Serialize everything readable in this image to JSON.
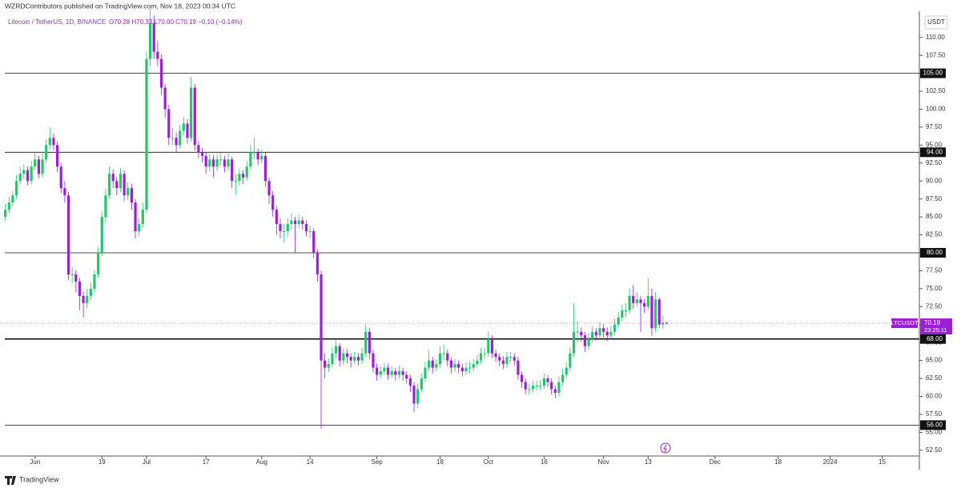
{
  "header": {
    "published": "WZRDContributors published on TradingView.com, Nov 18, 2023 00:34 UTC"
  },
  "footer": {
    "brand": "TradingView"
  },
  "chart_data": {
    "type": "candlestick",
    "title": "Litecoin / TetherUS, 1D, BINANCE",
    "ohlc_legend": "O70.28 H70.33 L70.00 C70.19 −0.10 (−0.14%)",
    "currency": "USDT",
    "symbol": "LTCUSDT",
    "countdown": "23:25:11",
    "up_color": "#22c76a",
    "down_color": "#9b1fd6",
    "last_price_line": true,
    "x": [
      "2023-05-24",
      "2023-05-25",
      "2023-05-26",
      "2023-05-27",
      "2023-05-28",
      "2023-05-29",
      "2023-05-30",
      "2023-05-31",
      "2023-06-01",
      "2023-06-02",
      "2023-06-03",
      "2023-06-04",
      "2023-06-05",
      "2023-06-06",
      "2023-06-07",
      "2023-06-08",
      "2023-06-09",
      "2023-06-10",
      "2023-06-11",
      "2023-06-12",
      "2023-06-13",
      "2023-06-14",
      "2023-06-15",
      "2023-06-16",
      "2023-06-17",
      "2023-06-18",
      "2023-06-19",
      "2023-06-20",
      "2023-06-21",
      "2023-06-22",
      "2023-06-23",
      "2023-06-24",
      "2023-06-25",
      "2023-06-26",
      "2023-06-27",
      "2023-06-28",
      "2023-06-29",
      "2023-06-30",
      "2023-07-01",
      "2023-07-02",
      "2023-07-03",
      "2023-07-04",
      "2023-07-05",
      "2023-07-06",
      "2023-07-07",
      "2023-07-08",
      "2023-07-09",
      "2023-07-10",
      "2023-07-11",
      "2023-07-12",
      "2023-07-13",
      "2023-07-14",
      "2023-07-15",
      "2023-07-16",
      "2023-07-17",
      "2023-07-18",
      "2023-07-19",
      "2023-07-20",
      "2023-07-21",
      "2023-07-22",
      "2023-07-23",
      "2023-07-24",
      "2023-07-25",
      "2023-07-26",
      "2023-07-27",
      "2023-07-28",
      "2023-07-29",
      "2023-07-30",
      "2023-07-31",
      "2023-08-01",
      "2023-08-02",
      "2023-08-03",
      "2023-08-04",
      "2023-08-05",
      "2023-08-06",
      "2023-08-07",
      "2023-08-08",
      "2023-08-09",
      "2023-08-10",
      "2023-08-11",
      "2023-08-12",
      "2023-08-13",
      "2023-08-14",
      "2023-08-15",
      "2023-08-16",
      "2023-08-17",
      "2023-08-18",
      "2023-08-19",
      "2023-08-20",
      "2023-08-21",
      "2023-08-22",
      "2023-08-23",
      "2023-08-24",
      "2023-08-25",
      "2023-08-26",
      "2023-08-27",
      "2023-08-28",
      "2023-08-29",
      "2023-08-30",
      "2023-08-31",
      "2023-09-01",
      "2023-09-02",
      "2023-09-03",
      "2023-09-04",
      "2023-09-05",
      "2023-09-06",
      "2023-09-07",
      "2023-09-08",
      "2023-09-09",
      "2023-09-10",
      "2023-09-11",
      "2023-09-12",
      "2023-09-13",
      "2023-09-14",
      "2023-09-15",
      "2023-09-16",
      "2023-09-17",
      "2023-09-18",
      "2023-09-19",
      "2023-09-20",
      "2023-09-21",
      "2023-09-22",
      "2023-09-23",
      "2023-09-24",
      "2023-09-25",
      "2023-09-26",
      "2023-09-27",
      "2023-09-28",
      "2023-09-29",
      "2023-09-30",
      "2023-10-01",
      "2023-10-02",
      "2023-10-03",
      "2023-10-04",
      "2023-10-05",
      "2023-10-06",
      "2023-10-07",
      "2023-10-08",
      "2023-10-09",
      "2023-10-10",
      "2023-10-11",
      "2023-10-12",
      "2023-10-13",
      "2023-10-14",
      "2023-10-15",
      "2023-10-16",
      "2023-10-17",
      "2023-10-18",
      "2023-10-19",
      "2023-10-20",
      "2023-10-21",
      "2023-10-22",
      "2023-10-23",
      "2023-10-24",
      "2023-10-25",
      "2023-10-26",
      "2023-10-27",
      "2023-10-28",
      "2023-10-29",
      "2023-10-30",
      "2023-10-31",
      "2023-11-01",
      "2023-11-02",
      "2023-11-03",
      "2023-11-04",
      "2023-11-05",
      "2023-11-06",
      "2023-11-07",
      "2023-11-08",
      "2023-11-09",
      "2023-11-10",
      "2023-11-11",
      "2023-11-12",
      "2023-11-13",
      "2023-11-14",
      "2023-11-15",
      "2023-11-16",
      "2023-11-17",
      "2023-11-18"
    ],
    "open": [
      85,
      86,
      87,
      88,
      90,
      91,
      91.5,
      90,
      92,
      93,
      91,
      93,
      95,
      96,
      95,
      92,
      89,
      88,
      77,
      77,
      76,
      74,
      73,
      74,
      75,
      77,
      80,
      85,
      88,
      91,
      90,
      89,
      91,
      88,
      89,
      87,
      83,
      84,
      86,
      107,
      112,
      108,
      107,
      103,
      100,
      96,
      96,
      95,
      97,
      98,
      96,
      103,
      95,
      94,
      93.5,
      92,
      93,
      92,
      93,
      93,
      92,
      93,
      90,
      90,
      91,
      90.5,
      92,
      94,
      94,
      93,
      93.5,
      90,
      88,
      86,
      84,
      83,
      83,
      84,
      84.5,
      84,
      84.5,
      84,
      83,
      83,
      80,
      77,
      65,
      64,
      64.5,
      66,
      67,
      65,
      66,
      65.5,
      65,
      65.5,
      65,
      66,
      69,
      66,
      64,
      63,
      63.5,
      64,
      63,
      63.5,
      63,
      63.5,
      63,
      62.5,
      61.5,
      59,
      61,
      62.5,
      64,
      65,
      64,
      64.5,
      66,
      66,
      65,
      64,
      64.5,
      64,
      63.5,
      64,
      64,
      64.5,
      65,
      66,
      66,
      68,
      66,
      65.5,
      65,
      64.5,
      65.5,
      65.5,
      65,
      63,
      62,
      61,
      61,
      61.5,
      61.5,
      61.5,
      62.5,
      62,
      61,
      60.5,
      62,
      63,
      64,
      66,
      69,
      69,
      68.5,
      67,
      68,
      69,
      68.5,
      69.5,
      69,
      68.5,
      69,
      70,
      71,
      72,
      72,
      74,
      73,
      73.5,
      73,
      72.5,
      74,
      69.5,
      73.5,
      70,
      70.28
    ],
    "high": [
      86.8,
      87.8,
      88.6,
      90.8,
      92,
      92.3,
      92,
      92.8,
      94,
      93.5,
      93.8,
      95.8,
      97.5,
      96.6,
      95.5,
      92.5,
      90,
      88.5,
      78,
      77.6,
      76.5,
      74.6,
      75,
      75.8,
      77.6,
      80.8,
      85.8,
      89,
      92,
      91.6,
      90.5,
      91.8,
      91.5,
      89.8,
      89.6,
      87.5,
      84.8,
      87,
      108,
      114,
      113,
      109.5,
      107.6,
      103.5,
      100.6,
      97.4,
      96.8,
      97.8,
      98.9,
      98.6,
      104.5,
      103.5,
      95.6,
      94.6,
      94,
      93.8,
      93.6,
      93.7,
      94,
      93.5,
      93.8,
      93.4,
      91,
      91.7,
      91.5,
      92.8,
      95,
      96,
      94.5,
      94.3,
      94,
      90.5,
      88.6,
      86.5,
      84.8,
      84,
      84.8,
      85.5,
      85,
      85.3,
      85,
      84.5,
      83.8,
      83.4,
      80.5,
      77.5,
      66,
      65.3,
      66.8,
      67.8,
      67.4,
      66.7,
      66.6,
      66,
      66.2,
      66,
      66.8,
      70,
      69.5,
      66.5,
      64.6,
      64.2,
      64.7,
      64.5,
      64.2,
      64,
      64.2,
      64,
      63.5,
      63,
      62,
      61.8,
      63.2,
      64.8,
      66.5,
      65.5,
      65.2,
      67,
      67.2,
      66.5,
      65.4,
      65.2,
      65,
      64.5,
      64.7,
      64.8,
      65.2,
      65.8,
      66.8,
      66.8,
      69,
      68.5,
      66.5,
      66,
      65.6,
      66.2,
      66.2,
      66,
      65.5,
      63.5,
      62.5,
      61.8,
      62.2,
      62.2,
      62.3,
      63.2,
      63,
      62.5,
      61.5,
      62.8,
      63.8,
      64.8,
      66.8,
      73,
      70.5,
      69.6,
      69,
      68.8,
      69.8,
      69.5,
      70.3,
      70,
      69.6,
      69.8,
      70.8,
      71.8,
      72.8,
      73,
      75,
      75.5,
      74.5,
      74,
      73.6,
      76.5,
      75,
      74.5,
      73.8,
      71.3,
      70.33
    ],
    "low": [
      84.5,
      85.5,
      86.5,
      87.5,
      89.5,
      90.2,
      89.4,
      89.5,
      91.5,
      90.4,
      90.5,
      92.5,
      94.5,
      94.3,
      91.2,
      88.3,
      87,
      76.2,
      75.8,
      74.5,
      72,
      71,
      72.3,
      73.4,
      74.5,
      76.5,
      79.5,
      84.2,
      87.5,
      89,
      88,
      88.4,
      87.2,
      87.4,
      86,
      82,
      82.4,
      83.5,
      85.5,
      106,
      107,
      106,
      102,
      98.8,
      95,
      95,
      94,
      94.5,
      96.4,
      95.2,
      95.5,
      94.2,
      93.2,
      92.6,
      91,
      91.3,
      90.5,
      91.4,
      92.2,
      91.2,
      91.5,
      89,
      88,
      89.4,
      89.6,
      90,
      91.5,
      93,
      92.2,
      92.5,
      89.2,
      86.8,
      85,
      82.5,
      82,
      81.5,
      82.2,
      83.3,
      80,
      83.4,
      83.2,
      82.3,
      82,
      79.2,
      76,
      55.5,
      62.5,
      63.4,
      64,
      65.3,
      64.2,
      64.4,
      64.6,
      64,
      64.5,
      64.3,
      64.5,
      65.5,
      65.2,
      63.3,
      62.2,
      62.5,
      63,
      62.3,
      62.6,
      62.2,
      62.5,
      62.2,
      61.8,
      60.6,
      57.8,
      58.4,
      60.5,
      62,
      63.5,
      63.2,
      63.5,
      64,
      65,
      64.2,
      63.2,
      63.5,
      63.2,
      62.8,
      63,
      63.2,
      63.5,
      64,
      64.5,
      65.2,
      65.5,
      65.4,
      64.8,
      64.2,
      63.8,
      64,
      64.8,
      64.3,
      62.3,
      61.2,
      60.3,
      60.2,
      60.5,
      60.8,
      60.8,
      61,
      61.3,
      60.3,
      59.8,
      60,
      61.5,
      62.5,
      63.5,
      65.5,
      67.5,
      67.6,
      66.2,
      66.5,
      67.5,
      67.8,
      68,
      68.2,
      67.7,
      68,
      68.5,
      69.5,
      70.5,
      71,
      71.5,
      72.2,
      72.5,
      69,
      71.6,
      72,
      68.5,
      69,
      69.5,
      69.4,
      70
    ],
    "close": [
      86,
      87,
      88,
      90,
      91,
      91.5,
      90,
      92,
      93,
      91,
      93,
      95,
      96,
      95,
      92,
      89,
      88,
      77,
      77,
      76,
      74,
      73,
      74,
      75,
      77,
      80,
      85,
      88,
      91,
      90,
      89,
      91,
      88,
      89,
      87,
      83,
      84,
      86,
      107,
      112,
      108,
      107,
      103,
      100,
      96,
      96,
      95,
      97,
      98,
      96,
      103,
      95,
      94,
      93.5,
      92,
      93,
      92,
      93,
      93,
      92,
      93,
      90,
      90,
      91,
      90.5,
      92,
      94,
      94,
      93,
      93.5,
      90,
      88,
      86,
      84,
      83,
      83,
      84,
      84.5,
      84,
      84.5,
      84,
      83,
      83,
      80,
      77,
      65,
      64,
      64.5,
      66,
      67,
      65,
      66,
      65.5,
      65,
      65.5,
      65,
      66,
      69,
      66,
      64,
      63,
      63.5,
      64,
      63,
      63.5,
      63,
      63.5,
      63,
      62.5,
      61.5,
      59,
      61,
      62.5,
      64,
      65,
      64,
      64.5,
      66,
      66,
      65,
      64,
      64.5,
      64,
      63.5,
      64,
      64,
      64.5,
      65,
      66,
      66,
      68,
      66,
      65.5,
      65,
      64.5,
      65.5,
      65.5,
      65,
      63,
      62,
      61,
      61,
      61.5,
      61.5,
      61.5,
      62.5,
      62,
      61,
      60.5,
      62,
      63,
      64,
      66,
      69,
      69,
      68.5,
      67,
      68,
      69,
      68.5,
      69.5,
      69,
      68.5,
      69,
      70,
      71,
      72,
      72,
      74,
      73,
      73.5,
      73,
      72.5,
      74,
      69.5,
      73.5,
      70,
      70.28,
      70.19
    ],
    "xlim": [
      "2023-05-23",
      "2024-01-25"
    ],
    "xticks": [
      {
        "value": "2023-06-01",
        "label": "Jun"
      },
      {
        "value": "2023-06-19",
        "label": "19"
      },
      {
        "value": "2023-07-01",
        "label": "Jul"
      },
      {
        "value": "2023-07-17",
        "label": "17"
      },
      {
        "value": "2023-08-01",
        "label": "Aug"
      },
      {
        "value": "2023-08-14",
        "label": "14"
      },
      {
        "value": "2023-09-01",
        "label": "Sep"
      },
      {
        "value": "2023-09-18",
        "label": "18"
      },
      {
        "value": "2023-10-01",
        "label": "Oct"
      },
      {
        "value": "2023-10-16",
        "label": "16"
      },
      {
        "value": "2023-11-01",
        "label": "Nov"
      },
      {
        "value": "2023-11-13",
        "label": "13"
      },
      {
        "value": "2023-12-01",
        "label": "Dec"
      },
      {
        "value": "2023-12-18",
        "label": "18"
      },
      {
        "value": "2024-01-01",
        "label": "2024"
      },
      {
        "value": "2024-01-15",
        "label": "15"
      }
    ],
    "ylim": [
      51.7,
      113.2
    ],
    "yticks": [
      {
        "value": 52.5,
        "label": "52.50"
      },
      {
        "value": 55,
        "label": "55.00"
      },
      {
        "value": 57.5,
        "label": "57.50"
      },
      {
        "value": 60,
        "label": "60.00"
      },
      {
        "value": 62.5,
        "label": "62.50"
      },
      {
        "value": 65,
        "label": "65.00"
      },
      {
        "value": 67.5,
        "label": "67.50"
      },
      {
        "value": 70,
        "label": "70.00"
      },
      {
        "value": 72.5,
        "label": "72.50"
      },
      {
        "value": 75,
        "label": "75.00"
      },
      {
        "value": 77.5,
        "label": "77.50"
      },
      {
        "value": 80,
        "label": "80.00"
      },
      {
        "value": 82.5,
        "label": "82.50"
      },
      {
        "value": 85,
        "label": "85.00"
      },
      {
        "value": 87.5,
        "label": "87.50"
      },
      {
        "value": 90,
        "label": "90.00"
      },
      {
        "value": 92.5,
        "label": "92.50"
      },
      {
        "value": 95,
        "label": "95.00"
      },
      {
        "value": 97.5,
        "label": "97.50"
      },
      {
        "value": 100,
        "label": "100.00"
      },
      {
        "value": 102.5,
        "label": "102.50"
      },
      {
        "value": 105,
        "label": "105.00"
      },
      {
        "value": 107.5,
        "label": "107.50"
      },
      {
        "value": 110,
        "label": "110.00"
      }
    ],
    "levels": [
      {
        "value": 105,
        "label": "105.00"
      },
      {
        "value": 94,
        "label": "94.00"
      },
      {
        "value": 80,
        "label": "80.00"
      },
      {
        "value": 68,
        "label": "68.00"
      },
      {
        "value": 56,
        "label": "56.00"
      }
    ]
  }
}
